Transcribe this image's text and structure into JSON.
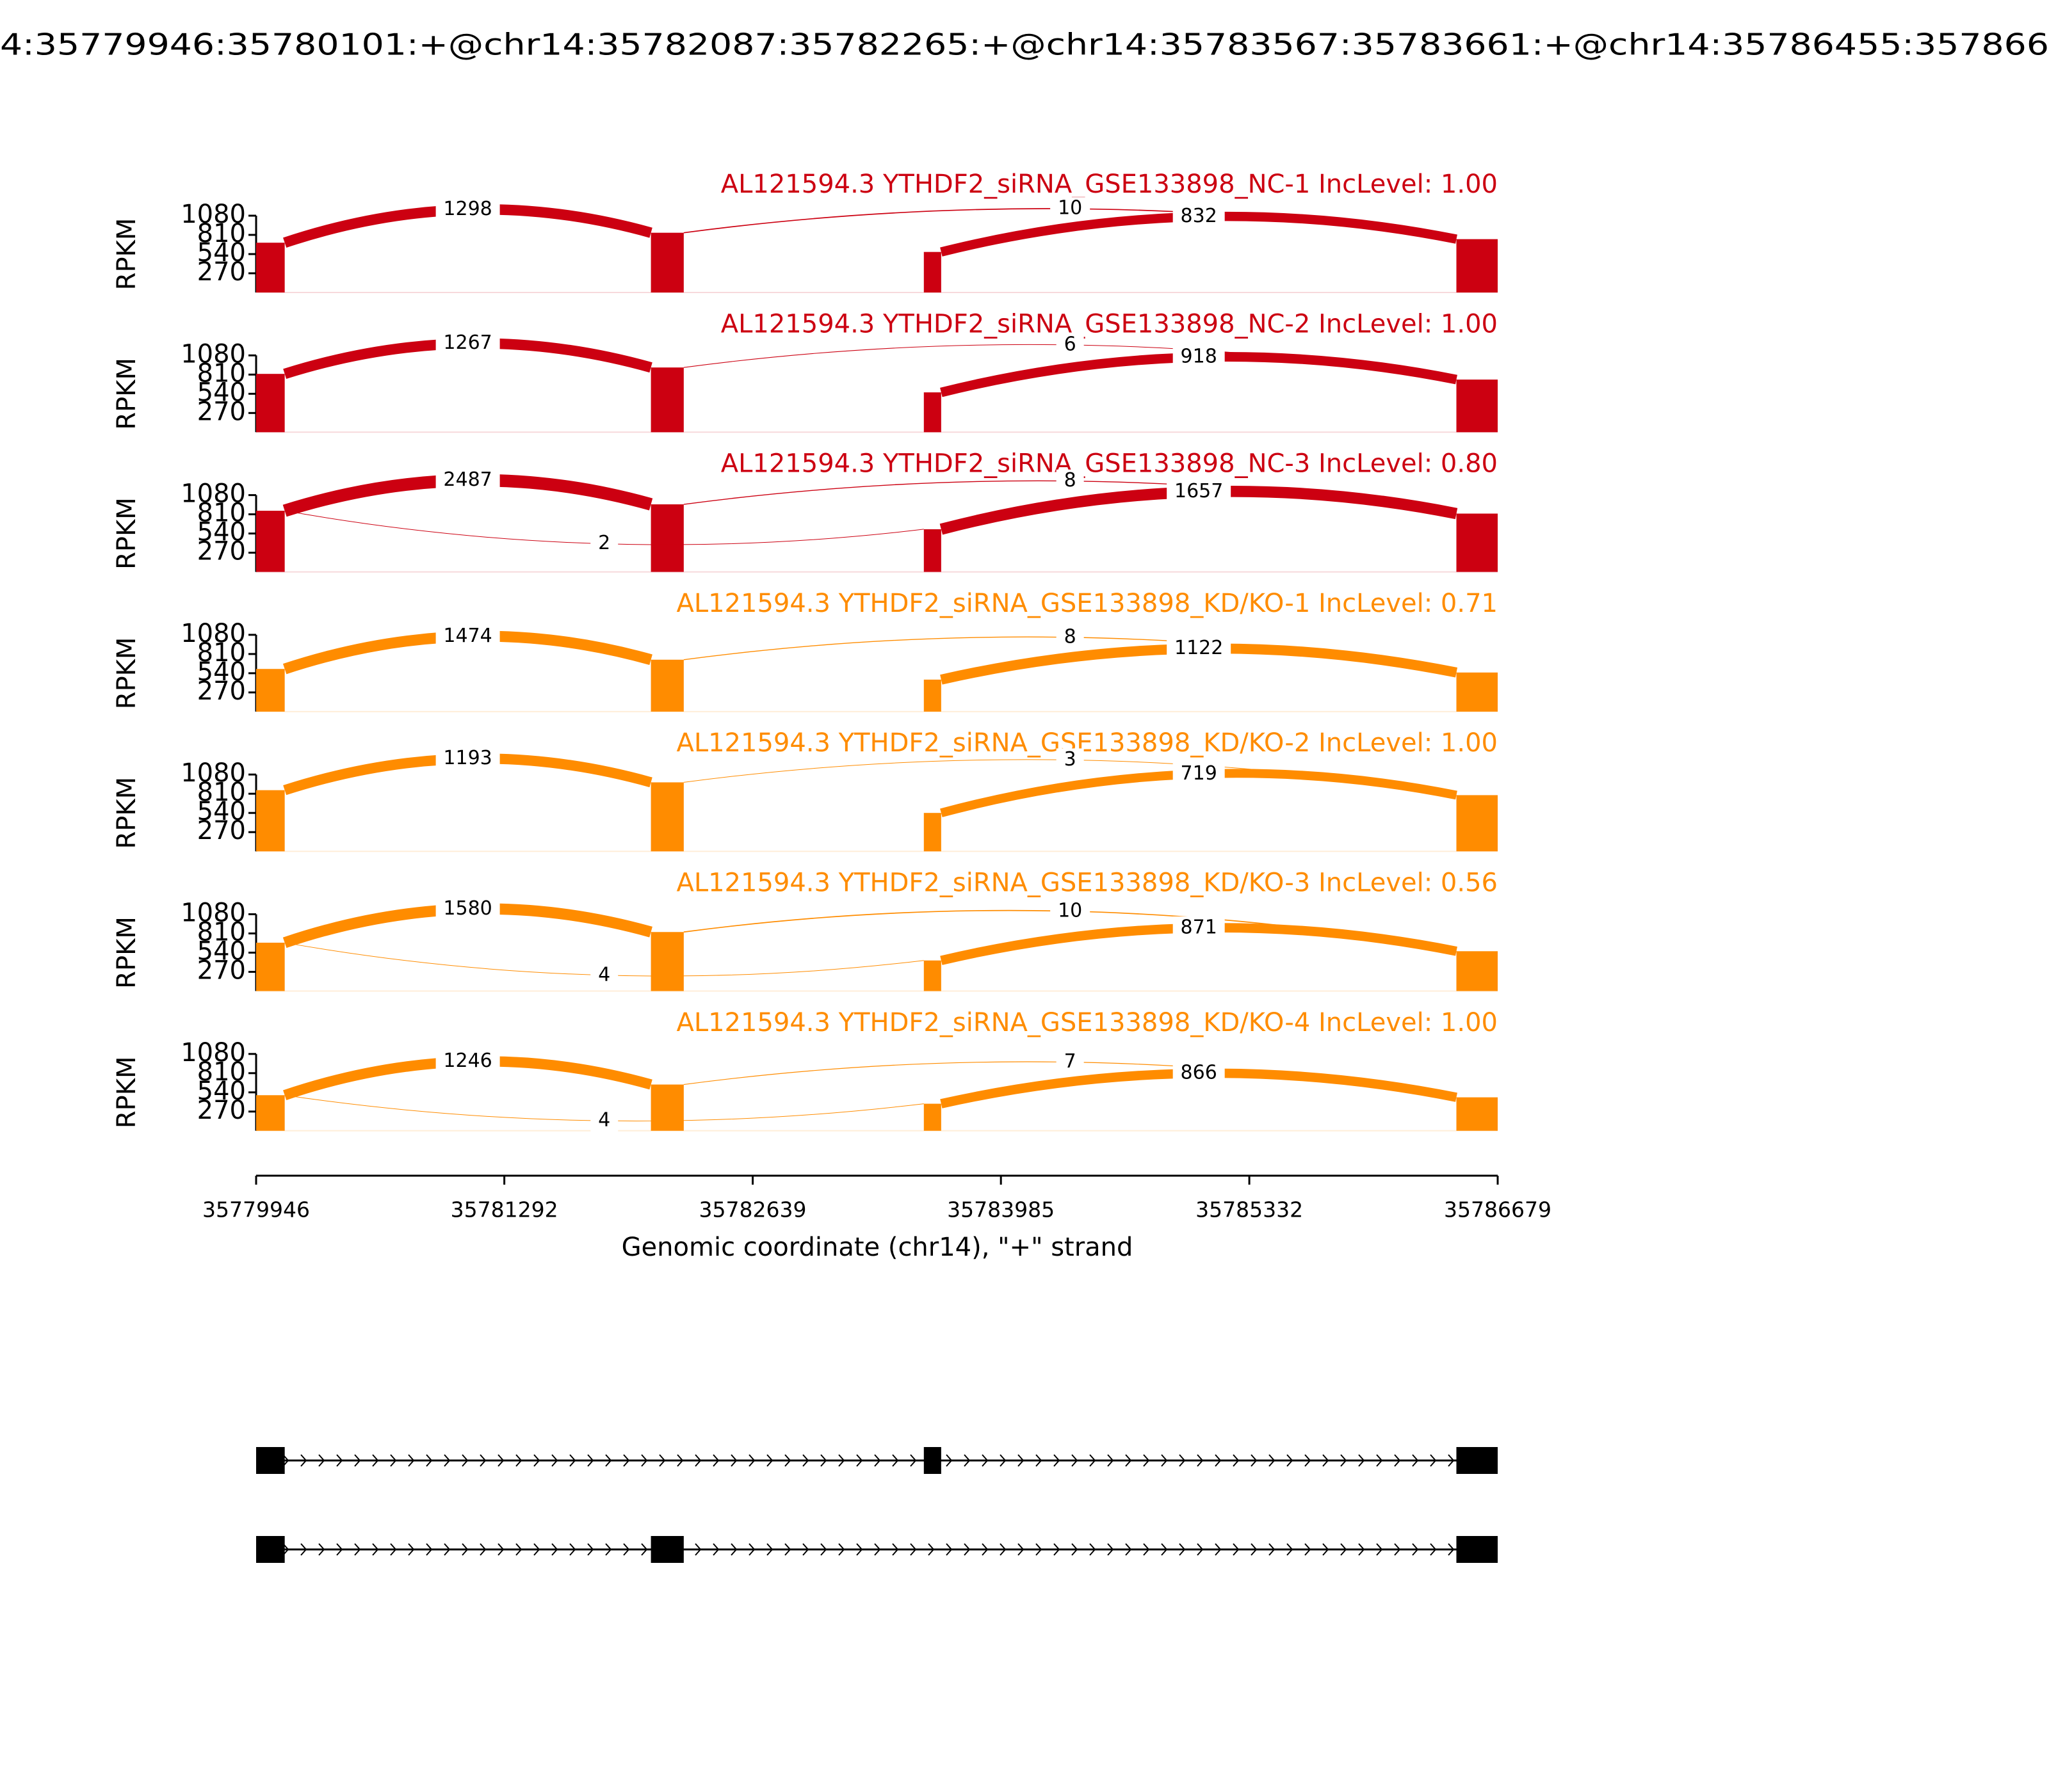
{
  "chart_data": {
    "type": "sashimi",
    "title": "4:35779946:35780101:+@chr14:35782087:35782265:+@chr14:35783567:35783661:+@chr14:35786455:357866",
    "xlabel": "Genomic coordinate (chr14), \"+\" strand",
    "xlim": [
      35779946,
      35786679
    ],
    "xticks": [
      35779946,
      35781292,
      35782639,
      35783985,
      35785332,
      35786679
    ],
    "exons": [
      [
        35779946,
        35780101
      ],
      [
        35782087,
        35782265
      ],
      [
        35783567,
        35783661
      ],
      [
        35786455,
        35786679
      ]
    ],
    "panels": [
      {
        "name": "AL121594.3 YTHDF2_siRNA_GSE133898_NC-1 IncLevel: 1.00",
        "color": "#cc0011",
        "ylabel": "RPKM",
        "ylim": [
          0,
          1080
        ],
        "yticks": [
          270,
          540,
          810,
          1080
        ],
        "coverage": [
          700,
          840,
          570,
          750
        ],
        "junctions": [
          {
            "start": 35780101,
            "end": 35782087,
            "count": 1298
          },
          {
            "start": 35782265,
            "end": 35786455,
            "count": 10
          },
          {
            "start": 35783661,
            "end": 35786455,
            "count": 832
          }
        ]
      },
      {
        "name": "AL121594.3 YTHDF2_siRNA_GSE133898_NC-2 IncLevel: 1.00",
        "color": "#cc0011",
        "ylabel": "RPKM",
        "ylim": [
          0,
          1080
        ],
        "yticks": [
          270,
          540,
          810,
          1080
        ],
        "coverage": [
          820,
          910,
          560,
          740
        ],
        "junctions": [
          {
            "start": 35780101,
            "end": 35782087,
            "count": 1267
          },
          {
            "start": 35782265,
            "end": 35786455,
            "count": 6
          },
          {
            "start": 35783661,
            "end": 35786455,
            "count": 918
          }
        ]
      },
      {
        "name": "AL121594.3 YTHDF2_siRNA_GSE133898_NC-3 IncLevel: 0.80",
        "color": "#cc0011",
        "ylabel": "RPKM",
        "ylim": [
          0,
          1080
        ],
        "yticks": [
          270,
          540,
          810,
          1080
        ],
        "coverage": [
          860,
          950,
          600,
          820
        ],
        "junctions": [
          {
            "start": 35780101,
            "end": 35782087,
            "count": 2487
          },
          {
            "start": 35780101,
            "end": 35783567,
            "count": 2
          },
          {
            "start": 35782265,
            "end": 35786455,
            "count": 8
          },
          {
            "start": 35783661,
            "end": 35786455,
            "count": 1657
          }
        ]
      },
      {
        "name": "AL121594.3 YTHDF2_siRNA_GSE133898_KD/KO-1 IncLevel: 0.71",
        "color": "#ff8c00",
        "ylabel": "RPKM",
        "ylim": [
          0,
          1080
        ],
        "yticks": [
          270,
          540,
          810,
          1080
        ],
        "coverage": [
          600,
          730,
          450,
          550
        ],
        "junctions": [
          {
            "start": 35780101,
            "end": 35782087,
            "count": 1474
          },
          {
            "start": 35782265,
            "end": 35786455,
            "count": 8
          },
          {
            "start": 35783661,
            "end": 35786455,
            "count": 1122
          }
        ]
      },
      {
        "name": "AL121594.3 YTHDF2_siRNA_GSE133898_KD/KO-2 IncLevel: 1.00",
        "color": "#ff8c00",
        "ylabel": "RPKM",
        "ylim": [
          0,
          1080
        ],
        "yticks": [
          270,
          540,
          810,
          1080
        ],
        "coverage": [
          860,
          970,
          540,
          790
        ],
        "junctions": [
          {
            "start": 35780101,
            "end": 35782087,
            "count": 1193
          },
          {
            "start": 35782265,
            "end": 35786455,
            "count": 3
          },
          {
            "start": 35783661,
            "end": 35786455,
            "count": 719
          }
        ]
      },
      {
        "name": "AL121594.3 YTHDF2_siRNA_GSE133898_KD/KO-3 IncLevel: 0.56",
        "color": "#ff8c00",
        "ylabel": "RPKM",
        "ylim": [
          0,
          1080
        ],
        "yticks": [
          270,
          540,
          810,
          1080
        ],
        "coverage": [
          680,
          830,
          430,
          560
        ],
        "junctions": [
          {
            "start": 35780101,
            "end": 35782087,
            "count": 1580
          },
          {
            "start": 35780101,
            "end": 35783567,
            "count": 4
          },
          {
            "start": 35782265,
            "end": 35786455,
            "count": 10
          },
          {
            "start": 35783661,
            "end": 35786455,
            "count": 871
          }
        ]
      },
      {
        "name": "AL121594.3 YTHDF2_siRNA_GSE133898_KD/KO-4 IncLevel: 1.00",
        "color": "#ff8c00",
        "ylabel": "RPKM",
        "ylim": [
          0,
          1080
        ],
        "yticks": [
          270,
          540,
          810,
          1080
        ],
        "coverage": [
          500,
          650,
          380,
          470
        ],
        "junctions": [
          {
            "start": 35780101,
            "end": 35782087,
            "count": 1246
          },
          {
            "start": 35780101,
            "end": 35783567,
            "count": 4
          },
          {
            "start": 35782265,
            "end": 35786455,
            "count": 7
          },
          {
            "start": 35783661,
            "end": 35786455,
            "count": 866
          }
        ]
      }
    ],
    "transcripts": [
      {
        "exons": [
          [
            35779946,
            35780101
          ],
          [
            35783567,
            35783661
          ],
          [
            35786455,
            35786679
          ]
        ]
      },
      {
        "exons": [
          [
            35779946,
            35780101
          ],
          [
            35782087,
            35782265
          ],
          [
            35786455,
            35786679
          ]
        ]
      }
    ]
  }
}
